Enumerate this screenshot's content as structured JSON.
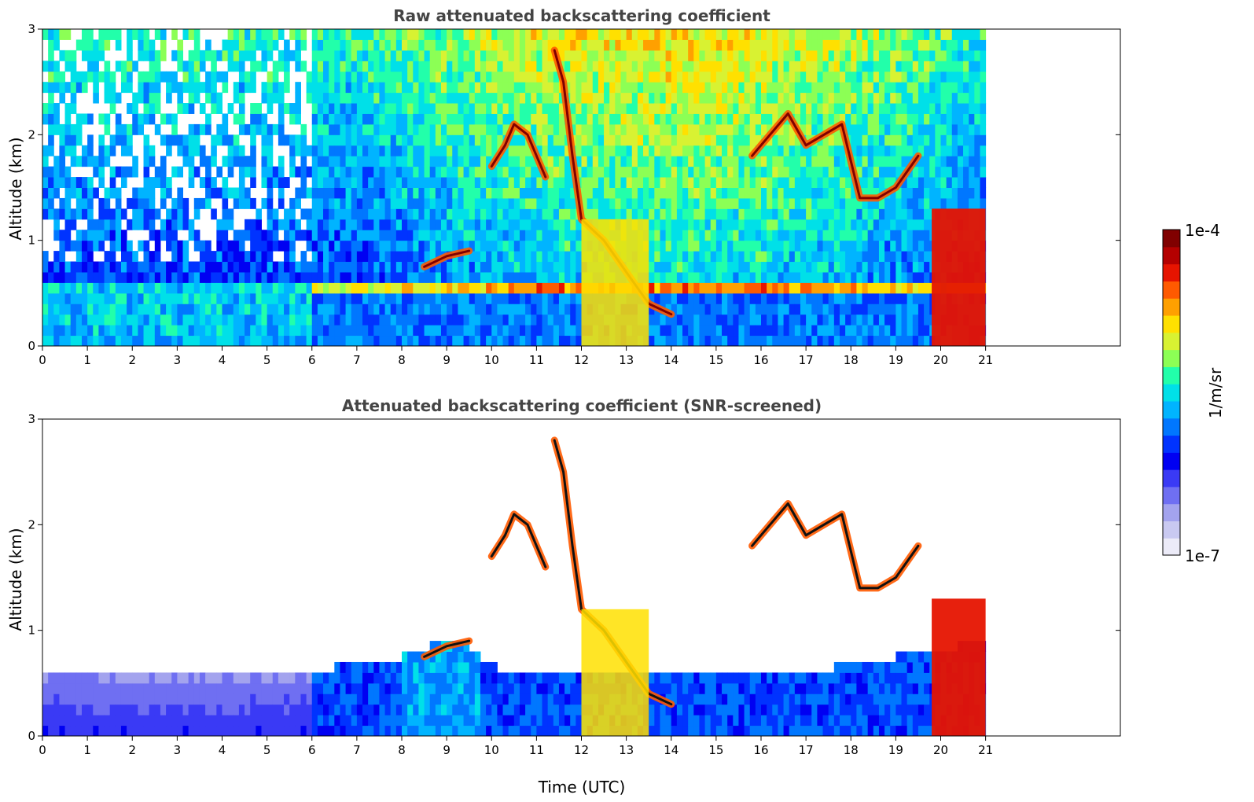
{
  "chart_data": [
    {
      "type": "heatmap",
      "title": "Raw attenuated backscattering coefficient",
      "xlabel": "",
      "ylabel": "Altitude (km)",
      "xlim": [
        0,
        24
      ],
      "ylim": [
        0,
        3
      ],
      "x_ticks": [
        "0",
        "1",
        "2",
        "3",
        "4",
        "5",
        "6",
        "7",
        "8",
        "9",
        "10",
        "11",
        "12",
        "13",
        "14",
        "15",
        "16",
        "17",
        "18",
        "19",
        "20",
        "21"
      ],
      "y_ticks": [
        "0",
        "1",
        "2",
        "3"
      ],
      "data_time_range": [
        0,
        21
      ],
      "cloud_layers": [
        {
          "x": [
            10.0,
            10.3,
            10.5,
            10.8,
            11.0,
            11.2
          ],
          "y": [
            1.7,
            1.9,
            2.1,
            2.0,
            1.8,
            1.6
          ]
        },
        {
          "x": [
            11.4,
            11.6,
            11.8,
            12.0,
            12.5,
            13.0,
            13.5,
            14.0
          ],
          "y": [
            2.8,
            2.5,
            1.8,
            1.2,
            1.0,
            0.7,
            0.4,
            0.3
          ]
        },
        {
          "x": [
            15.8,
            16.2,
            16.6,
            17.0,
            17.4,
            17.8,
            18.2,
            18.6,
            19.0,
            19.5
          ],
          "y": [
            1.8,
            2.0,
            2.2,
            1.9,
            2.0,
            2.1,
            1.4,
            1.4,
            1.5,
            1.8
          ]
        },
        {
          "x": [
            8.5,
            9.0,
            9.5
          ],
          "y": [
            0.75,
            0.85,
            0.9
          ]
        }
      ],
      "grid": false
    },
    {
      "type": "heatmap",
      "title": "Attenuated backscattering coefficient (SNR-screened)",
      "xlabel": "Time (UTC)",
      "ylabel": "Altitude (km)",
      "xlim": [
        0,
        24
      ],
      "ylim": [
        0,
        3
      ],
      "x_ticks": [
        "0",
        "1",
        "2",
        "3",
        "4",
        "5",
        "6",
        "7",
        "8",
        "9",
        "10",
        "11",
        "12",
        "13",
        "14",
        "15",
        "16",
        "17",
        "18",
        "19",
        "20",
        "21"
      ],
      "y_ticks": [
        "0",
        "1",
        "2",
        "3"
      ],
      "data_time_range": [
        0,
        21
      ],
      "boundary_layer_top": [
        {
          "x": 0,
          "y": 0.6
        },
        {
          "x": 6,
          "y": 0.6
        },
        {
          "x": 6.5,
          "y": 0.65
        },
        {
          "x": 8,
          "y": 0.75
        },
        {
          "x": 9.3,
          "y": 0.95
        },
        {
          "x": 9.9,
          "y": 0.7
        },
        {
          "x": 10.5,
          "y": 0.55
        },
        {
          "x": 11.5,
          "y": 0.55
        },
        {
          "x": 15,
          "y": 0.6
        },
        {
          "x": 17,
          "y": 0.6
        },
        {
          "x": 21,
          "y": 0.9
        }
      ],
      "grid": false
    }
  ],
  "colorbar": {
    "max_label": "1e-4",
    "min_label": "1e-7",
    "unit_label": "1/m/sr",
    "colors": [
      "#ecebf8",
      "#c9c9f1",
      "#a3a3ee",
      "#6f6ff2",
      "#3a3af5",
      "#0000f2",
      "#0033ff",
      "#0077ff",
      "#00b4ff",
      "#00e0e8",
      "#22ffaa",
      "#8cff55",
      "#d8f232",
      "#ffe000",
      "#ffa000",
      "#ff5a00",
      "#e61400",
      "#b40000",
      "#800000"
    ]
  }
}
